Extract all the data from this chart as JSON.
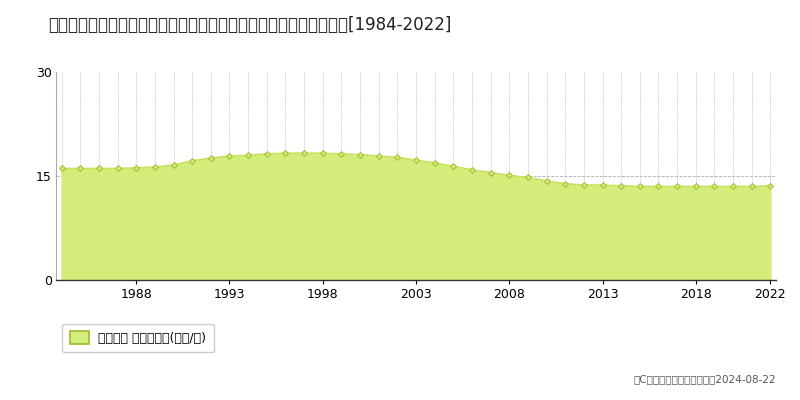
{
  "title": "大分県別府市大字鶴見字タタラ１８７８番７　地価公示　地価推移[1984-2022]",
  "years": [
    1984,
    1985,
    1986,
    1987,
    1988,
    1989,
    1990,
    1991,
    1992,
    1993,
    1994,
    1995,
    1996,
    1997,
    1998,
    1999,
    2000,
    2001,
    2002,
    2003,
    2004,
    2005,
    2006,
    2007,
    2008,
    2009,
    2010,
    2011,
    2012,
    2013,
    2014,
    2015,
    2016,
    2017,
    2018,
    2019,
    2020,
    2021,
    2022
  ],
  "values": [
    16.1,
    16.1,
    16.1,
    16.1,
    16.2,
    16.3,
    16.6,
    17.2,
    17.6,
    17.9,
    18.0,
    18.2,
    18.3,
    18.3,
    18.3,
    18.2,
    18.1,
    17.9,
    17.7,
    17.3,
    16.9,
    16.4,
    15.9,
    15.5,
    15.1,
    14.8,
    14.3,
    13.9,
    13.7,
    13.7,
    13.6,
    13.5,
    13.5,
    13.5,
    13.5,
    13.5,
    13.5,
    13.5,
    13.6
  ],
  "line_color": "#c8e05a",
  "fill_color": "#d4ed7a",
  "marker_color": "#b8d040",
  "marker_edge_color": "#a0b830",
  "bg_color": "#ffffff",
  "plot_bg_color": "#ffffff",
  "grid_color": "#999999",
  "ylim": [
    0,
    30
  ],
  "yticks": [
    0,
    15,
    30
  ],
  "legend_label": "地価公示 平均坪単価(万円/坪)",
  "copyright_text": "（C）土地価格ドットコム　2024-08-22",
  "title_fontsize": 12,
  "axis_fontsize": 9,
  "legend_fontsize": 9,
  "xtick_years": [
    1988,
    1993,
    1998,
    2003,
    2008,
    2013,
    2018,
    2022
  ]
}
